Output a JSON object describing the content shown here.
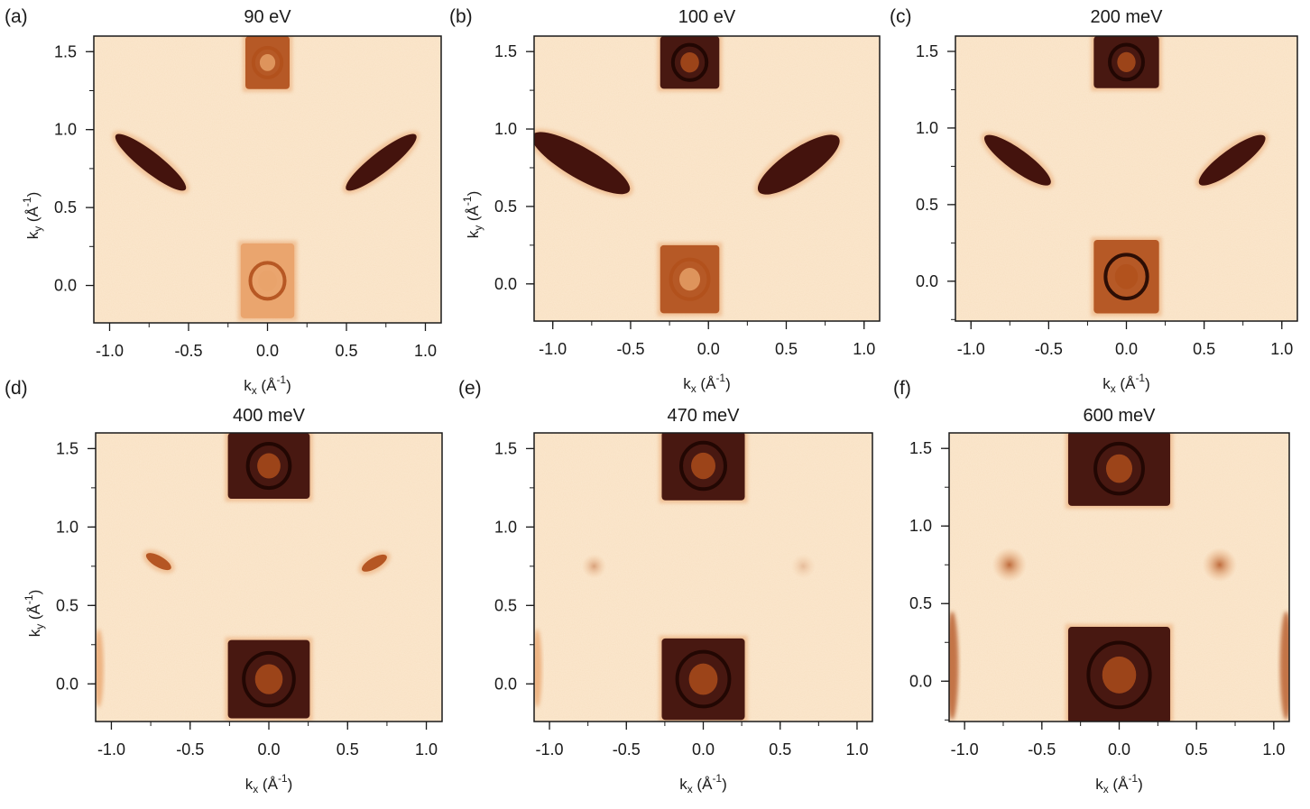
{
  "figure": {
    "colors": {
      "background": "#ffffff",
      "map_light": "#fbe8cf",
      "map_mid": "#e9a36a",
      "map_strong": "#b1501c",
      "map_dark": "#3a0a05",
      "frame": "#1a1a1a"
    }
  },
  "chart_data": [
    {
      "type": "heatmap",
      "letter": "(a)",
      "title": "90 eV",
      "xlabel": "kx (Å⁻¹)",
      "ylabel": "ky (Å⁻¹)",
      "xlim": [
        -1.1,
        1.1
      ],
      "ylim": [
        -0.24,
        1.6
      ],
      "xticks": [
        "-1.0",
        "-0.5",
        "0.0",
        "0.5",
        "1.0"
      ],
      "yticks": [
        "0.0",
        "0.5",
        "1.0",
        "1.5"
      ],
      "features": [
        {
          "kind": "box",
          "kx": 0.0,
          "ky": 1.43,
          "w": 0.28,
          "h": 0.34,
          "intensity": 0.55
        },
        {
          "kind": "box",
          "kx": 0.0,
          "ky": 0.03,
          "w": 0.34,
          "h": 0.48,
          "intensity": 0.35
        },
        {
          "kind": "streak",
          "kx": -0.74,
          "ky": 0.79,
          "len": 0.56,
          "wid": 0.13,
          "angle": 38,
          "intensity": 0.85
        },
        {
          "kind": "streak",
          "kx": 0.72,
          "ky": 0.79,
          "len": 0.56,
          "wid": 0.13,
          "angle": -38,
          "intensity": 0.85
        }
      ]
    },
    {
      "type": "heatmap",
      "letter": "(b)",
      "title": "100 eV",
      "xlabel": "kx (Å⁻¹)",
      "ylabel": "ky (Å⁻¹)",
      "xlim": [
        -1.12,
        1.1
      ],
      "ylim": [
        -0.24,
        1.6
      ],
      "xticks": [
        "-1.0",
        "-0.5",
        "0.0",
        "0.5",
        "1.0"
      ],
      "yticks": [
        "0.0",
        "0.5",
        "1.0",
        "1.5"
      ],
      "features": [
        {
          "kind": "box",
          "kx": -0.12,
          "ky": 1.43,
          "w": 0.38,
          "h": 0.34,
          "intensity": 0.9
        },
        {
          "kind": "box",
          "kx": -0.12,
          "ky": 0.03,
          "w": 0.38,
          "h": 0.44,
          "intensity": 0.55
        },
        {
          "kind": "streak",
          "kx": -0.82,
          "ky": 0.78,
          "len": 0.72,
          "wid": 0.2,
          "angle": 30,
          "intensity": 1.0
        },
        {
          "kind": "streak",
          "kx": 0.58,
          "ky": 0.77,
          "len": 0.62,
          "wid": 0.2,
          "angle": -34,
          "intensity": 1.0
        }
      ]
    },
    {
      "type": "heatmap",
      "letter": "(c)",
      "title": "200 meV",
      "xlabel": "kx (Å⁻¹)",
      "ylabel": "",
      "xlim": [
        -1.1,
        1.1
      ],
      "ylim": [
        -0.26,
        1.6
      ],
      "xticks": [
        "-1.0",
        "-0.5",
        "0.0",
        "0.5",
        "1.0"
      ],
      "yticks": [
        "0.0",
        "0.5",
        "1.0",
        "1.5"
      ],
      "features": [
        {
          "kind": "box",
          "kx": 0.0,
          "ky": 1.43,
          "w": 0.42,
          "h": 0.34,
          "intensity": 1.0
        },
        {
          "kind": "box",
          "kx": 0.0,
          "ky": 0.03,
          "w": 0.42,
          "h": 0.48,
          "intensity": 0.65
        },
        {
          "kind": "streak",
          "kx": -0.7,
          "ky": 0.79,
          "len": 0.52,
          "wid": 0.14,
          "angle": 36,
          "intensity": 1.0
        },
        {
          "kind": "streak",
          "kx": 0.68,
          "ky": 0.79,
          "len": 0.52,
          "wid": 0.14,
          "angle": -36,
          "intensity": 1.0
        }
      ]
    },
    {
      "type": "heatmap",
      "letter": "(d)",
      "title": "400 meV",
      "xlabel": "kx (Å⁻¹)",
      "ylabel": "ky (Å⁻¹)",
      "xlim": [
        -1.1,
        1.1
      ],
      "ylim": [
        -0.24,
        1.6
      ],
      "xticks": [
        "-1.0",
        "-0.5",
        "0.0",
        "0.5",
        "1.0"
      ],
      "yticks": [
        "0.0",
        "0.5",
        "1.0",
        "1.5"
      ],
      "features": [
        {
          "kind": "box",
          "kx": 0.0,
          "ky": 1.39,
          "w": 0.52,
          "h": 0.42,
          "intensity": 1.0
        },
        {
          "kind": "box",
          "kx": 0.0,
          "ky": 0.03,
          "w": 0.52,
          "h": 0.5,
          "intensity": 0.85
        },
        {
          "kind": "streak",
          "kx": -0.7,
          "ky": 0.78,
          "len": 0.18,
          "wid": 0.07,
          "angle": 30,
          "intensity": 0.6
        },
        {
          "kind": "streak",
          "kx": 0.67,
          "ky": 0.77,
          "len": 0.18,
          "wid": 0.07,
          "angle": -30,
          "intensity": 0.6
        },
        {
          "kind": "edge",
          "kx": -1.08,
          "ky": 0.1,
          "w": 0.06,
          "h": 0.5,
          "intensity": 0.3
        }
      ]
    },
    {
      "type": "heatmap",
      "letter": "(e)",
      "title": "470 meV",
      "xlabel": "kx (Å⁻¹)",
      "ylabel": "",
      "xlim": [
        -1.1,
        1.1
      ],
      "ylim": [
        -0.24,
        1.6
      ],
      "xticks": [
        "-1.0",
        "-0.5",
        "0.0",
        "0.5",
        "1.0"
      ],
      "yticks": [
        "0.0",
        "0.5",
        "1.0",
        "1.5"
      ],
      "features": [
        {
          "kind": "box",
          "kx": 0.0,
          "ky": 1.39,
          "w": 0.54,
          "h": 0.44,
          "intensity": 1.0
        },
        {
          "kind": "box",
          "kx": 0.0,
          "ky": 0.03,
          "w": 0.54,
          "h": 0.52,
          "intensity": 0.85
        },
        {
          "kind": "spot",
          "kx": -0.71,
          "ky": 0.75,
          "r": 0.05,
          "intensity": 0.25
        },
        {
          "kind": "spot",
          "kx": 0.65,
          "ky": 0.75,
          "r": 0.05,
          "intensity": 0.15
        },
        {
          "kind": "edge",
          "kx": -1.08,
          "ky": 0.1,
          "w": 0.06,
          "h": 0.5,
          "intensity": 0.35
        }
      ]
    },
    {
      "type": "heatmap",
      "letter": "(f)",
      "title": "600 meV",
      "xlabel": "kx (Å⁻¹)",
      "ylabel": "",
      "xlim": [
        -1.1,
        1.1
      ],
      "ylim": [
        -0.26,
        1.6
      ],
      "xticks": [
        "-1.0",
        "-0.5",
        "0.0",
        "0.5",
        "1.0"
      ],
      "yticks": [
        "0.0",
        "0.5",
        "1.0",
        "1.5"
      ],
      "features": [
        {
          "kind": "box",
          "kx": 0.0,
          "ky": 1.37,
          "w": 0.66,
          "h": 0.48,
          "intensity": 1.0
        },
        {
          "kind": "box",
          "kx": 0.0,
          "ky": 0.04,
          "w": 0.66,
          "h": 0.62,
          "intensity": 1.0
        },
        {
          "kind": "spot",
          "kx": -0.71,
          "ky": 0.75,
          "r": 0.07,
          "intensity": 0.45
        },
        {
          "kind": "spot",
          "kx": 0.65,
          "ky": 0.75,
          "r": 0.07,
          "intensity": 0.45
        },
        {
          "kind": "edge",
          "kx": -1.08,
          "ky": 0.1,
          "w": 0.08,
          "h": 0.7,
          "intensity": 0.7
        },
        {
          "kind": "edge",
          "kx": 1.08,
          "ky": 0.1,
          "w": 0.08,
          "h": 0.7,
          "intensity": 0.7
        }
      ]
    }
  ]
}
